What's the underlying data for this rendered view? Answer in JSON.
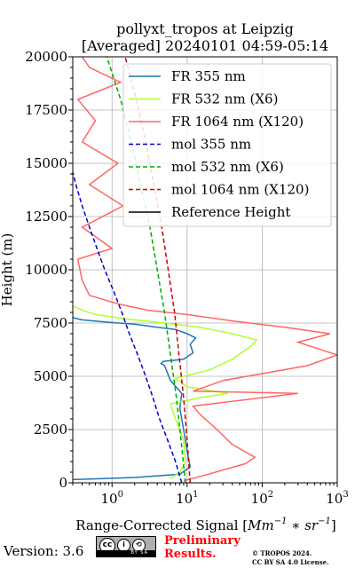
{
  "chart_data": {
    "type": "line",
    "title_lines": [
      "pollyxt_tropos at Leipzig",
      "[Averaged] 20240101 04:59-05:14"
    ],
    "xlabel_prefix": "Range-Corrected Signal [",
    "xlabel_unit": "Mm",
    "xlabel_exp1": "−1",
    "xlabel_mid": " ∗ sr",
    "xlabel_exp2": "−1",
    "xlabel_suffix": "]",
    "ylabel": "Height (m)",
    "xscale": "log",
    "xlim": [
      0.3,
      1000
    ],
    "ylim": [
      0,
      20000
    ],
    "x_ticks": [
      {
        "value": 1,
        "base": "10",
        "exp": "0"
      },
      {
        "value": 10,
        "base": "10",
        "exp": "1"
      },
      {
        "value": 100,
        "base": "10",
        "exp": "2"
      },
      {
        "value": 1000,
        "base": "10",
        "exp": "3"
      }
    ],
    "y_ticks": [
      0,
      2500,
      5000,
      7500,
      10000,
      12500,
      15000,
      17500,
      20000
    ],
    "y_tick_labels": [
      "0",
      "2500",
      "5000",
      "7500",
      "10000",
      "12500",
      "15000",
      "17500",
      "20000"
    ],
    "grid": true,
    "legend_position": "top-right",
    "series": [
      {
        "name": "FR 355 nm",
        "color": "#1f77b4",
        "style": "solid",
        "points": [
          [
            0.3,
            150
          ],
          [
            2,
            250
          ],
          [
            8,
            400
          ],
          [
            11,
            750
          ],
          [
            10,
            1500
          ],
          [
            9,
            2500
          ],
          [
            8,
            3500
          ],
          [
            8.5,
            4200
          ],
          [
            6,
            4800
          ],
          [
            5,
            5500
          ],
          [
            4.5,
            5600
          ],
          [
            4.8,
            5700
          ],
          [
            9,
            5800
          ],
          [
            12,
            6100
          ],
          [
            11,
            6500
          ],
          [
            13,
            6800
          ],
          [
            10,
            7000
          ],
          [
            7,
            7200
          ],
          [
            4,
            7300
          ],
          [
            2,
            7450
          ],
          [
            0.8,
            7550
          ],
          [
            0.4,
            7650
          ],
          [
            0.3,
            7750
          ],
          [
            0.28,
            9000
          ]
        ]
      },
      {
        "name": "FR 532 nm (X6)",
        "color": "#adff2f",
        "style": "solid",
        "points": [
          [
            6,
            200
          ],
          [
            8,
            500
          ],
          [
            9.5,
            1000
          ],
          [
            9,
            2000
          ],
          [
            7,
            3000
          ],
          [
            6,
            3700
          ],
          [
            15,
            4000
          ],
          [
            35,
            4200
          ],
          [
            10,
            4500
          ],
          [
            7,
            4900
          ],
          [
            20,
            5300
          ],
          [
            40,
            5800
          ],
          [
            70,
            6400
          ],
          [
            85,
            6700
          ],
          [
            40,
            7000
          ],
          [
            15,
            7300
          ],
          [
            5,
            7500
          ],
          [
            1.5,
            7700
          ],
          [
            0.6,
            7900
          ],
          [
            0.4,
            8100
          ],
          [
            0.3,
            8300
          ]
        ]
      },
      {
        "name": "FR 1064 nm (X120)",
        "color": "#ff6666",
        "style": "solid",
        "points": [
          [
            9,
            100
          ],
          [
            15,
            300
          ],
          [
            30,
            600
          ],
          [
            60,
            900
          ],
          [
            80,
            1200
          ],
          [
            40,
            1800
          ],
          [
            25,
            2500
          ],
          [
            15,
            3200
          ],
          [
            12,
            3600
          ],
          [
            300,
            4200
          ],
          [
            12,
            4300
          ],
          [
            30,
            4800
          ],
          [
            400,
            5500
          ],
          [
            1000,
            6000
          ],
          [
            300,
            6600
          ],
          [
            800,
            7000
          ],
          [
            200,
            7300
          ],
          [
            40,
            7600
          ],
          [
            10,
            7900
          ],
          [
            3,
            8100
          ],
          [
            1.2,
            8400
          ],
          [
            0.5,
            8800
          ],
          [
            0.4,
            9500
          ],
          [
            0.35,
            10500
          ],
          [
            1,
            11000
          ],
          [
            0.4,
            12000
          ],
          [
            1.4,
            13000
          ],
          [
            0.5,
            14000
          ],
          [
            1.2,
            15000
          ],
          [
            0.4,
            16000
          ],
          [
            0.6,
            17000
          ],
          [
            0.35,
            18000
          ],
          [
            1.3,
            18800
          ],
          [
            0.5,
            19500
          ],
          [
            0.4,
            20000
          ]
        ]
      },
      {
        "name": "mol 355 nm",
        "color": "#0000cc",
        "style": "dashed",
        "points": [
          [
            8.5,
            0
          ],
          [
            7,
            1000
          ],
          [
            5.5,
            2000
          ],
          [
            4.3,
            3000
          ],
          [
            3.5,
            4000
          ],
          [
            2.8,
            5000
          ],
          [
            2.2,
            6000
          ],
          [
            1.7,
            7000
          ],
          [
            1.35,
            8000
          ],
          [
            1.05,
            9000
          ],
          [
            0.8,
            10000
          ],
          [
            0.63,
            11000
          ],
          [
            0.5,
            12000
          ],
          [
            0.4,
            13000
          ],
          [
            0.33,
            14000
          ],
          [
            0.28,
            15000
          ]
        ]
      },
      {
        "name": "mol 532 nm (X6)",
        "color": "#00aa00",
        "style": "dashed",
        "points": [
          [
            9.5,
            0
          ],
          [
            8.3,
            2000
          ],
          [
            7.2,
            4000
          ],
          [
            6,
            6000
          ],
          [
            5,
            8000
          ],
          [
            4,
            10000
          ],
          [
            3.2,
            12000
          ],
          [
            2.4,
            14000
          ],
          [
            1.8,
            16000
          ],
          [
            1.3,
            18000
          ],
          [
            0.85,
            20000
          ]
        ]
      },
      {
        "name": "mol 1064 nm (X120)",
        "color": "#cc0000",
        "style": "dashed",
        "points": [
          [
            11,
            0
          ],
          [
            10,
            2000
          ],
          [
            9,
            4000
          ],
          [
            7.8,
            6000
          ],
          [
            6.8,
            8000
          ],
          [
            5.6,
            10000
          ],
          [
            4.6,
            12000
          ],
          [
            3.6,
            14000
          ],
          [
            2.8,
            16000
          ],
          [
            2.1,
            18000
          ],
          [
            1.5,
            20000
          ]
        ]
      },
      {
        "name": "Reference Height",
        "color": "#000000",
        "style": "solid",
        "points": []
      }
    ]
  },
  "footer": {
    "version": "Version: 3.6",
    "cc_label": "BY SA",
    "prelim_line1": "Preliminary",
    "prelim_line2": "Results.",
    "copyright_line1": "© TROPOS 2024.",
    "copyright_line2": "CC BY SA 4.0 License."
  }
}
